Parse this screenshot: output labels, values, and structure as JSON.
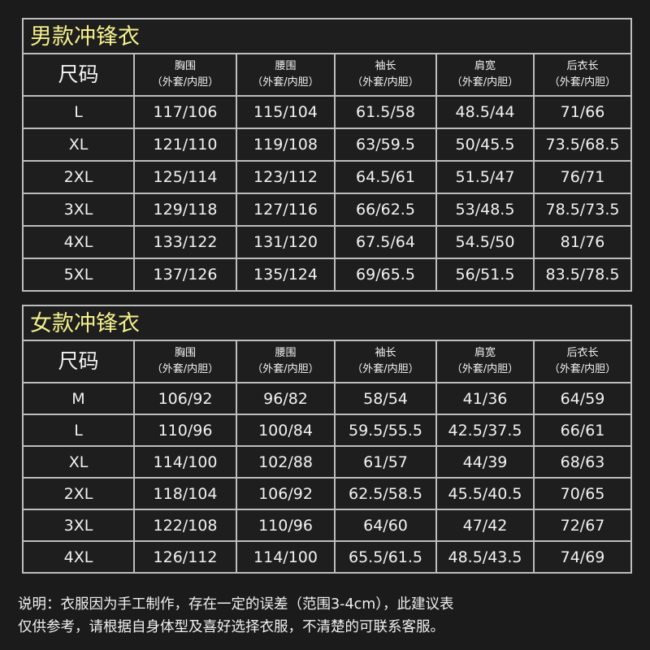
{
  "columns": {
    "size": "尺码",
    "sub": "（外套/内胆）",
    "measures": [
      "胸围",
      "腰围",
      "袖长",
      "肩宽",
      "后衣长"
    ]
  },
  "mens": {
    "title": "男款冲锋衣",
    "rows": [
      [
        "L",
        "117/106",
        "115/104",
        "61.5/58",
        "48.5/44",
        "71/66"
      ],
      [
        "XL",
        "121/110",
        "119/108",
        "63/59.5",
        "50/45.5",
        "73.5/68.5"
      ],
      [
        "2XL",
        "125/114",
        "123/112",
        "64.5/61",
        "51.5/47",
        "76/71"
      ],
      [
        "3XL",
        "129/118",
        "127/116",
        "66/62.5",
        "53/48.5",
        "78.5/73.5"
      ],
      [
        "4XL",
        "133/122",
        "131/120",
        "67.5/64",
        "54.5/50",
        "81/76"
      ],
      [
        "5XL",
        "137/126",
        "135/124",
        "69/65.5",
        "56/51.5",
        "83.5/78.5"
      ]
    ]
  },
  "womens": {
    "title": "女款冲锋衣",
    "rows": [
      [
        "M",
        "106/92",
        "96/82",
        "58/54",
        "41/36",
        "64/59"
      ],
      [
        "L",
        "110/96",
        "100/84",
        "59.5/55.5",
        "42.5/37.5",
        "66/61"
      ],
      [
        "XL",
        "114/100",
        "102/88",
        "61/57",
        "44/39",
        "68/63"
      ],
      [
        "2XL",
        "118/104",
        "106/92",
        "62.5/58.5",
        "45.5/40.5",
        "70/65"
      ],
      [
        "3XL",
        "122/108",
        "110/96",
        "64/60",
        "47/42",
        "72/67"
      ],
      [
        "4XL",
        "126/112",
        "114/100",
        "65.5/61.5",
        "48.5/43.5",
        "74/69"
      ]
    ]
  },
  "note": {
    "line1": "说明：衣服因为手工制作，存在一定的误差（范围3-4cm），此建议表",
    "line2": "仅供参考，请根据自身体型及喜好选择衣服，不清楚的可联系客服。"
  },
  "colors": {
    "title": "#f3ef8c",
    "background": "#1b1b1b",
    "grid": "#bdbdbd"
  }
}
